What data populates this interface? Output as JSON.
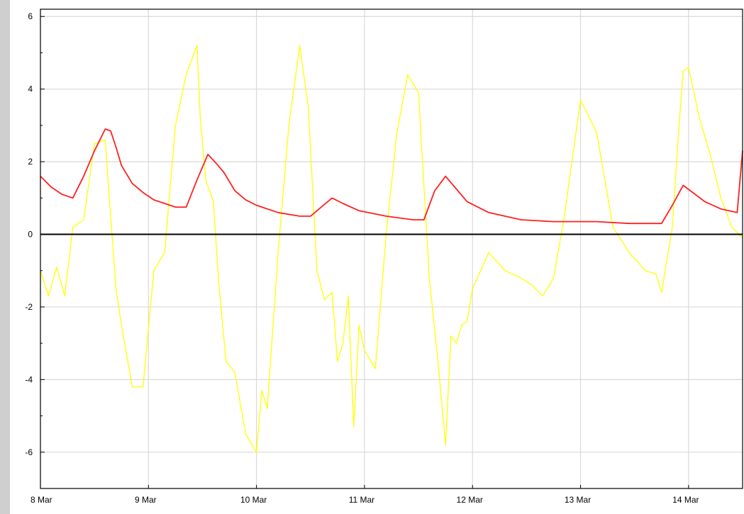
{
  "colors": {
    "background": "#ffffff",
    "side_strip": "#cfcfcf",
    "grid": "#d9d9d9",
    "zero_line": "#000000",
    "axis_frame": "#000000"
  },
  "chart_data": {
    "type": "line",
    "title": "",
    "xlabel": "",
    "ylabel": "",
    "grid": true,
    "legend": "none",
    "xlim": [
      "2024-03-08T00:00",
      "2024-03-14T12:00"
    ],
    "ylim": [
      -7,
      6.2
    ],
    "x_ticks": [
      {
        "x": "2024-03-08T00:00",
        "label": "8 Mar"
      },
      {
        "x": "2024-03-09T00:00",
        "label": "9 Mar"
      },
      {
        "x": "2024-03-10T00:00",
        "label": "10 Mar"
      },
      {
        "x": "2024-03-11T00:00",
        "label": "11 Mar"
      },
      {
        "x": "2024-03-12T00:00",
        "label": "12 Mar"
      },
      {
        "x": "2024-03-13T00:00",
        "label": "13 Mar"
      },
      {
        "x": "2024-03-14T00:00",
        "label": "14 Mar"
      }
    ],
    "y_ticks": [
      {
        "y": 6,
        "label": "6"
      },
      {
        "y": 4,
        "label": "4"
      },
      {
        "y": 2,
        "label": "2"
      },
      {
        "y": 0,
        "label": "0"
      },
      {
        "y": -2,
        "label": "-2"
      },
      {
        "y": -4,
        "label": "-4"
      },
      {
        "y": -6,
        "label": "-6"
      }
    ],
    "series": [
      {
        "color": "#ffff00",
        "x": [
          "2024-03-08T00:00",
          "2024-03-08T01:48",
          "2024-03-08T03:36",
          "2024-03-08T05:24",
          "2024-03-08T07:12",
          "2024-03-08T09:36",
          "2024-03-08T12:00",
          "2024-03-08T14:24",
          "2024-03-08T15:36",
          "2024-03-08T16:48",
          "2024-03-08T18:00",
          "2024-03-08T20:24",
          "2024-03-08T22:48",
          "2024-03-09T01:12",
          "2024-03-09T03:36",
          "2024-03-09T06:00",
          "2024-03-09T08:24",
          "2024-03-09T10:48",
          "2024-03-09T11:31",
          "2024-03-09T12:43",
          "2024-03-09T14:24",
          "2024-03-09T15:36",
          "2024-03-09T17:14",
          "2024-03-09T19:12",
          "2024-03-09T21:36",
          "2024-03-10T00:00",
          "2024-03-10T01:12",
          "2024-03-10T02:24",
          "2024-03-10T04:48",
          "2024-03-10T07:12",
          "2024-03-10T09:36",
          "2024-03-10T11:31",
          "2024-03-10T13:26",
          "2024-03-10T15:07",
          "2024-03-10T16:48",
          "2024-03-10T18:00",
          "2024-03-10T19:12",
          "2024-03-10T20:24",
          "2024-03-10T21:36",
          "2024-03-10T22:48",
          "2024-03-11T00:00",
          "2024-03-11T02:24",
          "2024-03-11T04:48",
          "2024-03-11T07:12",
          "2024-03-11T09:36",
          "2024-03-11T12:00",
          "2024-03-11T14:24",
          "2024-03-11T16:19",
          "2024-03-11T18:00",
          "2024-03-11T19:12",
          "2024-03-11T20:24",
          "2024-03-11T21:36",
          "2024-03-11T22:48",
          "2024-03-12T00:00",
          "2024-03-12T03:36",
          "2024-03-12T07:12",
          "2024-03-12T10:48",
          "2024-03-12T13:12",
          "2024-03-12T15:36",
          "2024-03-12T18:00",
          "2024-03-12T20:24",
          "2024-03-13T00:00",
          "2024-03-13T03:36",
          "2024-03-13T07:12",
          "2024-03-13T10:48",
          "2024-03-13T14:24",
          "2024-03-13T16:48",
          "2024-03-13T18:00",
          "2024-03-13T20:24",
          "2024-03-13T21:36",
          "2024-03-13T22:48",
          "2024-03-14T00:00",
          "2024-03-14T01:12",
          "2024-03-14T02:24",
          "2024-03-14T04:48",
          "2024-03-14T07:12",
          "2024-03-14T09:36",
          "2024-03-14T12:00"
        ],
        "values": [
          -1.0,
          -1.7,
          -0.9,
          -1.7,
          0.2,
          0.4,
          2.5,
          2.6,
          0.5,
          -1.5,
          -2.5,
          -4.2,
          -4.2,
          -1.0,
          -0.5,
          3.0,
          4.4,
          5.2,
          3.2,
          1.5,
          0.9,
          -1.3,
          -3.5,
          -3.8,
          -5.5,
          -6.0,
          -4.3,
          -4.8,
          -0.5,
          3.0,
          5.2,
          3.5,
          -1.0,
          -1.8,
          -1.6,
          -3.5,
          -3.0,
          -1.7,
          -5.3,
          -2.5,
          -3.2,
          -3.7,
          0.0,
          2.8,
          4.4,
          3.9,
          -1.2,
          -3.5,
          -5.8,
          -2.8,
          -3.0,
          -2.5,
          -2.4,
          -1.5,
          -0.5,
          -1.0,
          -1.2,
          -1.4,
          -1.7,
          -1.2,
          0.5,
          3.7,
          2.8,
          0.2,
          -0.5,
          -1.0,
          -1.1,
          -1.6,
          0.2,
          2.5,
          4.5,
          4.6,
          3.9,
          3.2,
          2.2,
          1.0,
          0.2,
          -0.1
        ]
      },
      {
        "color": "#ff2020",
        "x": [
          "2024-03-08T00:00",
          "2024-03-08T02:24",
          "2024-03-08T04:48",
          "2024-03-08T07:12",
          "2024-03-08T09:36",
          "2024-03-08T12:00",
          "2024-03-08T14:24",
          "2024-03-08T15:36",
          "2024-03-08T16:48",
          "2024-03-08T18:00",
          "2024-03-08T20:24",
          "2024-03-08T22:48",
          "2024-03-09T01:12",
          "2024-03-09T03:36",
          "2024-03-09T06:00",
          "2024-03-09T08:24",
          "2024-03-09T10:48",
          "2024-03-09T13:12",
          "2024-03-09T15:07",
          "2024-03-09T16:48",
          "2024-03-09T19:12",
          "2024-03-09T21:36",
          "2024-03-10T00:00",
          "2024-03-10T04:48",
          "2024-03-10T09:36",
          "2024-03-10T12:00",
          "2024-03-10T14:24",
          "2024-03-10T16:48",
          "2024-03-10T19:12",
          "2024-03-10T22:48",
          "2024-03-11T04:48",
          "2024-03-11T10:48",
          "2024-03-11T13:12",
          "2024-03-11T15:36",
          "2024-03-11T18:00",
          "2024-03-11T20:24",
          "2024-03-11T22:48",
          "2024-03-12T03:36",
          "2024-03-12T10:48",
          "2024-03-12T18:00",
          "2024-03-13T03:36",
          "2024-03-13T10:48",
          "2024-03-13T15:36",
          "2024-03-13T18:00",
          "2024-03-13T20:24",
          "2024-03-13T22:48",
          "2024-03-14T03:36",
          "2024-03-14T07:12",
          "2024-03-14T10:48",
          "2024-03-14T12:00"
        ],
        "values": [
          1.6,
          1.3,
          1.1,
          1.0,
          1.6,
          2.3,
          2.9,
          2.85,
          2.4,
          1.9,
          1.4,
          1.15,
          0.95,
          0.85,
          0.75,
          0.75,
          1.5,
          2.2,
          1.95,
          1.7,
          1.2,
          0.95,
          0.8,
          0.6,
          0.5,
          0.5,
          0.75,
          1.0,
          0.85,
          0.65,
          0.5,
          0.4,
          0.4,
          1.2,
          1.6,
          1.25,
          0.9,
          0.6,
          0.4,
          0.35,
          0.35,
          0.3,
          0.3,
          0.3,
          0.8,
          1.35,
          0.9,
          0.7,
          0.6,
          2.3
        ]
      }
    ]
  }
}
